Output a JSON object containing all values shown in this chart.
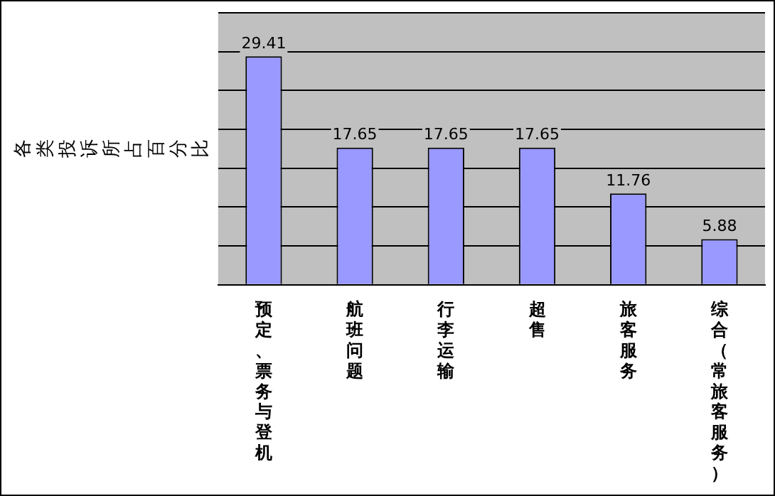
{
  "chart_data": {
    "type": "bar",
    "ylabel": "各类投诉所占百分比",
    "categories": [
      "预定、票务与登机",
      "航班问题",
      "行李运输",
      "超售",
      "旅客服务",
      "综合（常旅客服务）"
    ],
    "values": [
      29.41,
      17.65,
      17.65,
      17.65,
      11.76,
      5.88
    ],
    "color": "#9999ff",
    "ylim": [
      0,
      35
    ],
    "yticks": [
      {
        "value": 0,
        "label": null
      },
      {
        "value": 5,
        "label": null
      },
      {
        "value": 10,
        "label": null
      },
      {
        "value": 15,
        "label": null
      },
      {
        "value": 20,
        "label": null
      },
      {
        "value": 25,
        "label": null
      },
      {
        "value": 30,
        "label": null
      },
      {
        "value": 35,
        "label": null
      }
    ],
    "tick_labels": "x",
    "grid": "y",
    "data_labels": true,
    "legend": false
  }
}
